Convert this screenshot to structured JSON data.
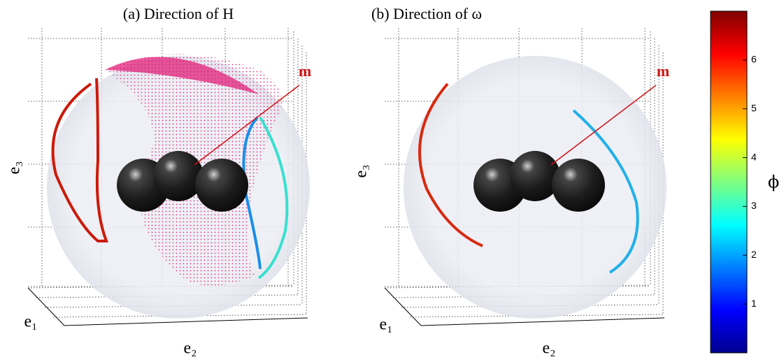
{
  "panels": [
    {
      "title": "(a) Direction of H",
      "axis_labels": {
        "x": "e₁",
        "y": "e₂",
        "z": "e₃"
      },
      "annotation": "m"
    },
    {
      "title": "(b) Direction of ω",
      "axis_labels": {
        "x": "e₁",
        "y": "e₂",
        "z": "e₃"
      },
      "annotation": "m"
    }
  ],
  "colorbar": {
    "label": "ϕ",
    "lim": [
      0,
      7
    ],
    "ticks": [
      1,
      2,
      3,
      4,
      5,
      6
    ]
  }
}
